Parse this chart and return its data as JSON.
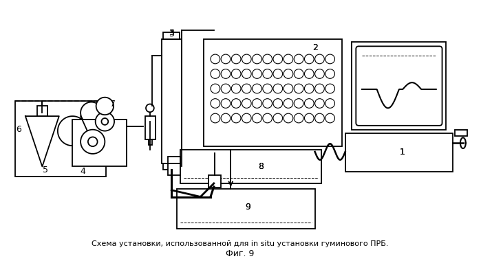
{
  "title": "Схема установки, использованной для in situ установки гуминового ПРБ.",
  "subtitle": "Фиг. 9",
  "bg_color": "#ffffff",
  "fig_width": 6.99,
  "fig_height": 3.8
}
